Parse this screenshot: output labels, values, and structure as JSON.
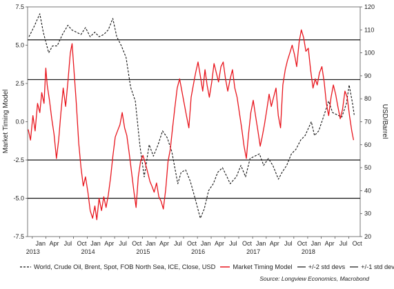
{
  "chart_data": {
    "type": "line",
    "ylabel_left": "Market Timing Model",
    "ylabel_right": "USD/Barrel",
    "left_axis": {
      "ylim": [
        -7.5,
        7.5
      ],
      "ticks": [
        "7.5",
        "5.0",
        "2.5",
        "0.0",
        "-2.5",
        "-5.0",
        "-7.5"
      ]
    },
    "right_axis": {
      "ylim": [
        20,
        120
      ],
      "ticks": [
        "120",
        "110",
        "100",
        "90",
        "80",
        "70",
        "60",
        "50",
        "40",
        "30",
        "20"
      ]
    },
    "x_range": [
      "2012-12-01",
      "2018-12-15"
    ],
    "x_ticks": [
      {
        "date": "2013-01-01",
        "label": "Jan",
        "year": "2013"
      },
      {
        "date": "2013-04-01",
        "label": "Apr",
        "year": ""
      },
      {
        "date": "2013-07-01",
        "label": "Jul",
        "year": ""
      },
      {
        "date": "2013-10-01",
        "label": "Oct",
        "year": ""
      },
      {
        "date": "2014-01-01",
        "label": "Jan",
        "year": "2014"
      },
      {
        "date": "2014-04-01",
        "label": "Apr",
        "year": ""
      },
      {
        "date": "2014-07-01",
        "label": "Jul",
        "year": ""
      },
      {
        "date": "2014-10-01",
        "label": "Oct",
        "year": ""
      },
      {
        "date": "2015-01-01",
        "label": "Jan",
        "year": "2015"
      },
      {
        "date": "2015-04-01",
        "label": "Apr",
        "year": ""
      },
      {
        "date": "2015-07-01",
        "label": "Jul",
        "year": ""
      },
      {
        "date": "2015-10-01",
        "label": "Oct",
        "year": ""
      },
      {
        "date": "2016-01-01",
        "label": "Jan",
        "year": "2016"
      },
      {
        "date": "2016-04-01",
        "label": "Apr",
        "year": ""
      },
      {
        "date": "2016-07-01",
        "label": "Jul",
        "year": ""
      },
      {
        "date": "2016-10-01",
        "label": "Oct",
        "year": ""
      },
      {
        "date": "2017-01-01",
        "label": "Jan",
        "year": "2017"
      },
      {
        "date": "2017-04-01",
        "label": "Apr",
        "year": ""
      },
      {
        "date": "2017-07-01",
        "label": "Jul",
        "year": ""
      },
      {
        "date": "2017-10-01",
        "label": "Oct",
        "year": ""
      },
      {
        "date": "2018-01-01",
        "label": "Jan",
        "year": "2018"
      },
      {
        "date": "2018-04-01",
        "label": "Apr",
        "year": ""
      },
      {
        "date": "2018-07-01",
        "label": "Jul",
        "year": ""
      },
      {
        "date": "2018-10-01",
        "label": "Oct",
        "year": ""
      }
    ],
    "reference_lines": [
      {
        "name": "+/-2 std devs",
        "values": [
          5.35,
          -5.0
        ]
      },
      {
        "name": "+/-1 std dev",
        "values": [
          2.75,
          -2.5
        ]
      }
    ],
    "series": [
      {
        "name": "World, Crude Oil, Brent, Spot, FOB North Sea, ICE, Close, USD",
        "axis": "right",
        "style": "dashed",
        "color": "#111111",
        "points": [
          [
            "2012-12-10",
            107
          ],
          [
            "2013-01-10",
            111
          ],
          [
            "2013-02-20",
            117
          ],
          [
            "2013-03-15",
            109
          ],
          [
            "2013-04-20",
            100
          ],
          [
            "2013-05-15",
            103
          ],
          [
            "2013-06-15",
            103
          ],
          [
            "2013-07-20",
            108
          ],
          [
            "2013-08-25",
            112
          ],
          [
            "2013-09-20",
            110
          ],
          [
            "2013-10-20",
            109
          ],
          [
            "2013-11-20",
            108
          ],
          [
            "2013-12-20",
            111
          ],
          [
            "2014-01-20",
            107
          ],
          [
            "2014-02-20",
            109
          ],
          [
            "2014-03-20",
            107
          ],
          [
            "2014-04-20",
            108
          ],
          [
            "2014-05-20",
            110
          ],
          [
            "2014-06-19",
            115
          ],
          [
            "2014-07-15",
            107
          ],
          [
            "2014-08-15",
            103
          ],
          [
            "2014-09-15",
            98
          ],
          [
            "2014-10-15",
            85
          ],
          [
            "2014-11-15",
            79
          ],
          [
            "2014-12-15",
            60
          ],
          [
            "2015-01-13",
            46
          ],
          [
            "2015-02-15",
            60
          ],
          [
            "2015-03-15",
            55
          ],
          [
            "2015-04-15",
            60
          ],
          [
            "2015-05-15",
            66
          ],
          [
            "2015-06-15",
            63
          ],
          [
            "2015-07-15",
            57
          ],
          [
            "2015-08-24",
            43
          ],
          [
            "2015-09-15",
            48
          ],
          [
            "2015-10-15",
            49
          ],
          [
            "2015-11-15",
            44
          ],
          [
            "2015-12-15",
            37
          ],
          [
            "2016-01-20",
            28
          ],
          [
            "2016-02-15",
            32
          ],
          [
            "2016-03-15",
            40
          ],
          [
            "2016-04-15",
            43
          ],
          [
            "2016-05-15",
            48
          ],
          [
            "2016-06-15",
            50
          ],
          [
            "2016-07-15",
            46
          ],
          [
            "2016-08-05",
            43
          ],
          [
            "2016-09-15",
            46
          ],
          [
            "2016-10-15",
            51
          ],
          [
            "2016-11-15",
            46
          ],
          [
            "2016-12-15",
            54
          ],
          [
            "2017-01-15",
            55
          ],
          [
            "2017-02-15",
            56
          ],
          [
            "2017-03-15",
            51
          ],
          [
            "2017-04-15",
            54
          ],
          [
            "2017-05-15",
            51
          ],
          [
            "2017-06-21",
            45
          ],
          [
            "2017-07-15",
            48
          ],
          [
            "2017-08-15",
            51
          ],
          [
            "2017-09-15",
            56
          ],
          [
            "2017-10-15",
            58
          ],
          [
            "2017-11-15",
            62
          ],
          [
            "2017-12-15",
            64
          ],
          [
            "2018-01-25",
            70
          ],
          [
            "2018-02-15",
            64
          ],
          [
            "2018-03-15",
            66
          ],
          [
            "2018-04-15",
            72
          ],
          [
            "2018-05-20",
            79
          ],
          [
            "2018-06-15",
            74
          ],
          [
            "2018-07-15",
            73
          ],
          [
            "2018-08-15",
            72
          ],
          [
            "2018-09-15",
            78
          ],
          [
            "2018-10-03",
            86
          ],
          [
            "2018-10-25",
            78
          ],
          [
            "2018-11-05",
            73
          ]
        ]
      },
      {
        "name": "Market Timing Model",
        "axis": "left",
        "style": "solid",
        "color": "#e8141c",
        "points": [
          [
            "2012-12-05",
            -0.5
          ],
          [
            "2012-12-20",
            -1.2
          ],
          [
            "2013-01-05",
            0.4
          ],
          [
            "2013-01-20",
            -0.6
          ],
          [
            "2013-02-05",
            1.2
          ],
          [
            "2013-02-20",
            0.6
          ],
          [
            "2013-03-05",
            1.9
          ],
          [
            "2013-03-20",
            1.2
          ],
          [
            "2013-04-01",
            3.5
          ],
          [
            "2013-04-10",
            2.4
          ],
          [
            "2013-04-25",
            1.4
          ],
          [
            "2013-05-10",
            0.2
          ],
          [
            "2013-05-25",
            -0.8
          ],
          [
            "2013-06-10",
            -2.4
          ],
          [
            "2013-06-25",
            -1.2
          ],
          [
            "2013-07-10",
            0.6
          ],
          [
            "2013-07-25",
            2.2
          ],
          [
            "2013-08-10",
            1.0
          ],
          [
            "2013-08-25",
            2.6
          ],
          [
            "2013-09-10",
            4.5
          ],
          [
            "2013-09-22",
            5.1
          ],
          [
            "2013-10-05",
            3.3
          ],
          [
            "2013-10-20",
            1.2
          ],
          [
            "2013-11-05",
            -1.4
          ],
          [
            "2013-11-20",
            -3.0
          ],
          [
            "2013-12-05",
            -4.2
          ],
          [
            "2013-12-20",
            -3.6
          ],
          [
            "2014-01-05",
            -4.6
          ],
          [
            "2014-01-20",
            -5.8
          ],
          [
            "2014-02-05",
            -6.3
          ],
          [
            "2014-02-20",
            -5.5
          ],
          [
            "2014-03-05",
            -6.4
          ],
          [
            "2014-03-20",
            -5.0
          ],
          [
            "2014-04-05",
            -5.8
          ],
          [
            "2014-04-20",
            -4.9
          ],
          [
            "2014-05-05",
            -5.6
          ],
          [
            "2014-05-20",
            -4.8
          ],
          [
            "2014-06-05",
            -3.6
          ],
          [
            "2014-06-20",
            -2.2
          ],
          [
            "2014-07-05",
            -1.0
          ],
          [
            "2014-07-20",
            -0.6
          ],
          [
            "2014-08-05",
            -0.2
          ],
          [
            "2014-08-20",
            0.6
          ],
          [
            "2014-09-05",
            -0.4
          ],
          [
            "2014-09-20",
            -0.9
          ],
          [
            "2014-10-05",
            -2.0
          ],
          [
            "2014-10-20",
            -3.2
          ],
          [
            "2014-11-05",
            -4.5
          ],
          [
            "2014-11-20",
            -5.6
          ],
          [
            "2014-12-05",
            -3.6
          ],
          [
            "2014-12-20",
            -2.6
          ],
          [
            "2015-01-05",
            -2.2
          ],
          [
            "2015-01-20",
            -2.7
          ],
          [
            "2015-02-05",
            -3.3
          ],
          [
            "2015-02-20",
            -3.9
          ],
          [
            "2015-03-05",
            -4.2
          ],
          [
            "2015-03-20",
            -4.6
          ],
          [
            "2015-04-05",
            -4.0
          ],
          [
            "2015-04-20",
            -4.9
          ],
          [
            "2015-05-05",
            -5.2
          ],
          [
            "2015-05-20",
            -5.7
          ],
          [
            "2015-06-05",
            -4.4
          ],
          [
            "2015-06-20",
            -2.6
          ],
          [
            "2015-07-05",
            -1.8
          ],
          [
            "2015-07-20",
            -0.4
          ],
          [
            "2015-08-05",
            1.0
          ],
          [
            "2015-08-20",
            2.2
          ],
          [
            "2015-09-05",
            2.8
          ],
          [
            "2015-09-20",
            2.0
          ],
          [
            "2015-10-05",
            1.2
          ],
          [
            "2015-10-20",
            0.4
          ],
          [
            "2015-11-05",
            -0.4
          ],
          [
            "2015-11-20",
            1.6
          ],
          [
            "2015-12-05",
            2.4
          ],
          [
            "2015-12-20",
            3.2
          ],
          [
            "2016-01-05",
            3.9
          ],
          [
            "2016-01-20",
            3.0
          ],
          [
            "2016-02-05",
            2.0
          ],
          [
            "2016-02-20",
            3.4
          ],
          [
            "2016-03-05",
            2.4
          ],
          [
            "2016-03-20",
            1.6
          ],
          [
            "2016-04-05",
            2.6
          ],
          [
            "2016-04-20",
            3.8
          ],
          [
            "2016-05-05",
            3.2
          ],
          [
            "2016-05-20",
            2.6
          ],
          [
            "2016-06-05",
            3.6
          ],
          [
            "2016-06-20",
            3.9
          ],
          [
            "2016-07-05",
            2.8
          ],
          [
            "2016-07-20",
            2.0
          ],
          [
            "2016-08-05",
            2.8
          ],
          [
            "2016-08-20",
            3.4
          ],
          [
            "2016-09-05",
            2.2
          ],
          [
            "2016-09-20",
            1.6
          ],
          [
            "2016-10-05",
            0.6
          ],
          [
            "2016-10-20",
            -0.4
          ],
          [
            "2016-11-05",
            -1.6
          ],
          [
            "2016-11-20",
            -2.4
          ],
          [
            "2016-12-05",
            -0.8
          ],
          [
            "2016-12-20",
            0.6
          ],
          [
            "2017-01-05",
            1.4
          ],
          [
            "2017-01-20",
            0.4
          ],
          [
            "2017-02-05",
            -0.6
          ],
          [
            "2017-02-20",
            -1.6
          ],
          [
            "2017-03-05",
            -1.0
          ],
          [
            "2017-03-20",
            -0.2
          ],
          [
            "2017-04-05",
            0.8
          ],
          [
            "2017-04-20",
            1.8
          ],
          [
            "2017-05-05",
            1.0
          ],
          [
            "2017-05-20",
            1.6
          ],
          [
            "2017-06-05",
            2.2
          ],
          [
            "2017-06-20",
            0.4
          ],
          [
            "2017-07-05",
            -0.4
          ],
          [
            "2017-07-20",
            2.4
          ],
          [
            "2017-08-05",
            3.4
          ],
          [
            "2017-08-20",
            4.0
          ],
          [
            "2017-09-05",
            4.5
          ],
          [
            "2017-09-20",
            5.0
          ],
          [
            "2017-10-05",
            4.4
          ],
          [
            "2017-10-20",
            3.6
          ],
          [
            "2017-11-05",
            5.2
          ],
          [
            "2017-11-20",
            6.0
          ],
          [
            "2017-12-05",
            5.5
          ],
          [
            "2017-12-20",
            4.6
          ],
          [
            "2018-01-05",
            4.8
          ],
          [
            "2018-01-20",
            3.4
          ],
          [
            "2018-02-05",
            2.2
          ],
          [
            "2018-02-20",
            2.8
          ],
          [
            "2018-03-05",
            2.4
          ],
          [
            "2018-03-20",
            3.2
          ],
          [
            "2018-04-05",
            3.6
          ],
          [
            "2018-04-20",
            2.6
          ],
          [
            "2018-05-05",
            1.2
          ],
          [
            "2018-05-20",
            0.4
          ],
          [
            "2018-06-05",
            1.6
          ],
          [
            "2018-06-20",
            2.4
          ],
          [
            "2018-07-05",
            1.8
          ],
          [
            "2018-07-20",
            1.0
          ],
          [
            "2018-08-05",
            0.2
          ],
          [
            "2018-08-20",
            0.8
          ],
          [
            "2018-09-05",
            2.0
          ],
          [
            "2018-09-20",
            1.6
          ],
          [
            "2018-10-05",
            0.4
          ],
          [
            "2018-10-20",
            -0.6
          ],
          [
            "2018-11-01",
            -1.2
          ]
        ]
      }
    ],
    "legend_placement": "bottom",
    "grid": false
  },
  "legend": {
    "brent": "World, Crude Oil, Brent, Spot, FOB North Sea, ICE, Close, USD",
    "model": "Market Timing Model",
    "std2": "+/-2 std devs",
    "std1": "+/-1 std dev"
  },
  "source": "Source: Longview Economics, Macrobond",
  "colors": {
    "model": "#e8141c",
    "brent": "#111111",
    "std_lines": "#111111"
  }
}
